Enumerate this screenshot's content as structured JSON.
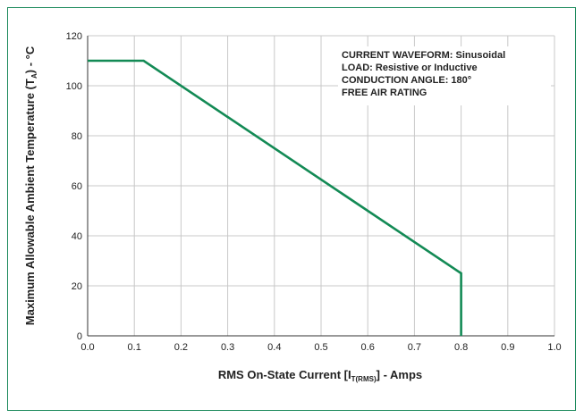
{
  "colors": {
    "frame": "#1d8a5c",
    "line": "#138a55",
    "grid": "#c8c8c8",
    "axis": "#333333",
    "text": "#222222"
  },
  "chart_data": {
    "type": "line",
    "title": "",
    "xlabel": {
      "main": "RMS On-State Current [I",
      "sub": "T(RMS)",
      "tail": "] - Amps"
    },
    "ylabel": {
      "main": "Maximum Allowable Ambient Temperature (T",
      "sub": "A",
      "tail": ") - °C"
    },
    "xlim": [
      0.0,
      1.0
    ],
    "ylim": [
      0,
      120
    ],
    "x_ticks": [
      0.0,
      0.1,
      0.2,
      0.3,
      0.4,
      0.5,
      0.6,
      0.7,
      0.8,
      0.9,
      1.0
    ],
    "x_tick_labels": [
      "0.0",
      "0.1",
      "0.2",
      "0.3",
      "0.4",
      "0.5",
      "0.6",
      "0.7",
      "0.8",
      "0.9",
      "1.0"
    ],
    "y_ticks": [
      0,
      20,
      40,
      60,
      80,
      100,
      120
    ],
    "y_tick_labels": [
      "0",
      "20",
      "40",
      "60",
      "80",
      "100",
      "120"
    ],
    "grid": true,
    "series": [
      {
        "x": [
          0.0,
          0.12,
          0.8,
          0.8
        ],
        "y": [
          110,
          110,
          25,
          0
        ]
      }
    ],
    "annotations": [
      "CURRENT WAVEFORM: Sinusoidal",
      "LOAD: Resistive or Inductive",
      "CONDUCTION ANGLE: 180°",
      "FREE AIR RATING"
    ]
  }
}
